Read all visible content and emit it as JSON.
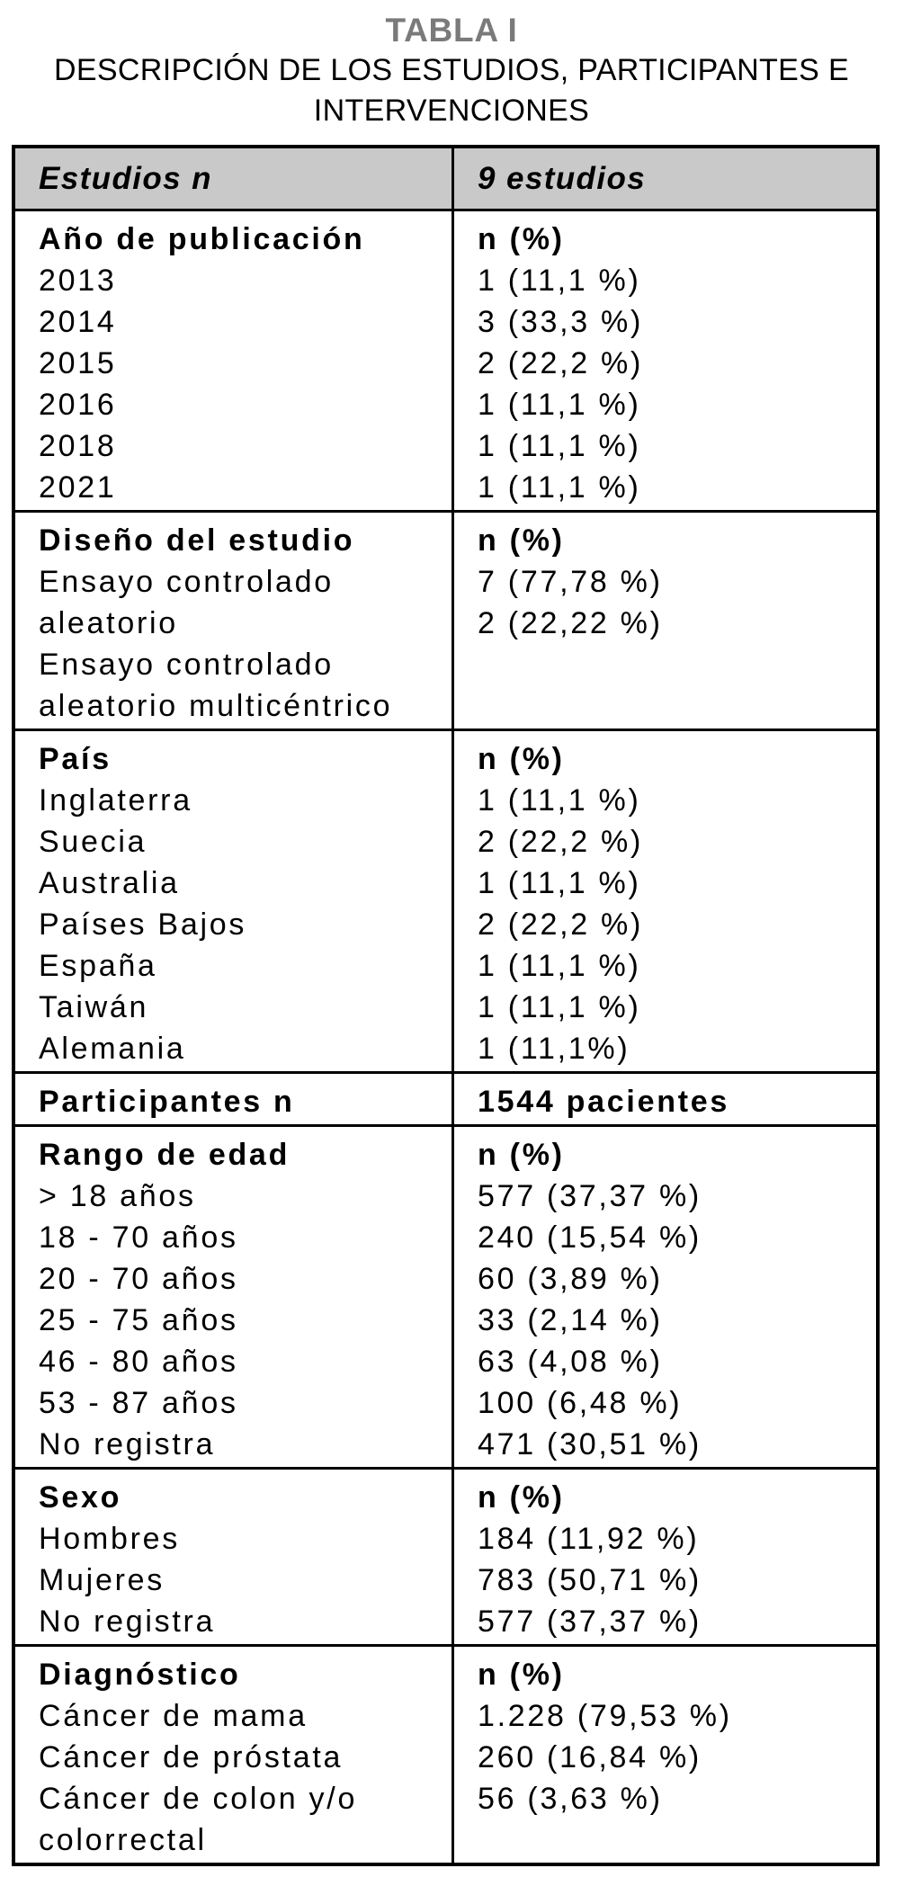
{
  "page": {
    "title": "TABLA I",
    "subtitle_lines": [
      "DESCRIPCIÓN DE LOS ESTUDIOS, PARTICIPANTES E",
      "INTERVENCIONES"
    ]
  },
  "colors": {
    "header_bg": "#c9c9c9",
    "title_gray": "#7a7a7a",
    "border": "#000000"
  },
  "table": {
    "header": {
      "left": "Estudios n",
      "right": "9 estudios"
    },
    "sections": [
      {
        "left_title": "Año de publicación",
        "right_title": "n (%)",
        "left_lines": [
          "2013",
          "2014",
          "2015",
          "2016",
          "2018",
          "2021"
        ],
        "right_lines": [
          "1 (11,1 %)",
          "3 (33,3 %)",
          "2 (22,2 %)",
          "1 (11,1 %)",
          "1 (11,1 %)",
          "1 (11,1 %)"
        ]
      },
      {
        "left_title": "Diseño del estudio",
        "right_title": "n (%)",
        "left_lines": [
          "Ensayo controlado",
          "aleatorio",
          "Ensayo controlado",
          "aleatorio multicéntrico"
        ],
        "right_lines": [
          "7 (77,78 %)",
          "2 (22,22 %)"
        ]
      },
      {
        "left_title": "País",
        "right_title": "n (%)",
        "left_lines": [
          "Inglaterra",
          "Suecia",
          "Australia",
          "Países Bajos",
          "España",
          "Taiwán",
          "Alemania"
        ],
        "right_lines": [
          "1 (11,1 %)",
          "2 (22,2 %)",
          "1 (11,1 %)",
          "2 (22,2 %)",
          "1 (11,1 %)",
          "1 (11,1 %)",
          "1 (11,1%)"
        ]
      },
      {
        "left_title": "Participantes n",
        "right_title": "1544 pacientes",
        "left_lines": [],
        "right_lines": []
      },
      {
        "left_title": "Rango de edad",
        "right_title": "n (%)",
        "left_lines": [
          "> 18 años",
          "18 - 70 años",
          "20 - 70 años",
          "25 - 75 años",
          "46 - 80 años",
          "53 - 87 años",
          "No registra"
        ],
        "right_lines": [
          "577 (37,37 %)",
          "240 (15,54 %)",
          "60 (3,89 %)",
          "33 (2,14 %)",
          "63 (4,08 %)",
          "100 (6,48 %)",
          "471 (30,51 %)"
        ]
      },
      {
        "left_title": "Sexo",
        "right_title": "n (%)",
        "left_lines": [
          "Hombres",
          "Mujeres",
          "No registra"
        ],
        "right_lines": [
          "184 (11,92 %)",
          "783 (50,71 %)",
          "577 (37,37 %)"
        ]
      },
      {
        "left_title": "Diagnóstico",
        "right_title": "n (%)",
        "left_lines": [
          "Cáncer de mama",
          "Cáncer de próstata",
          "Cáncer de colon y/o",
          "colorrectal"
        ],
        "right_lines": [
          "1.228 (79,53 %)",
          "260 (16,84 %)",
          "56 (3,63 %)"
        ]
      }
    ]
  }
}
